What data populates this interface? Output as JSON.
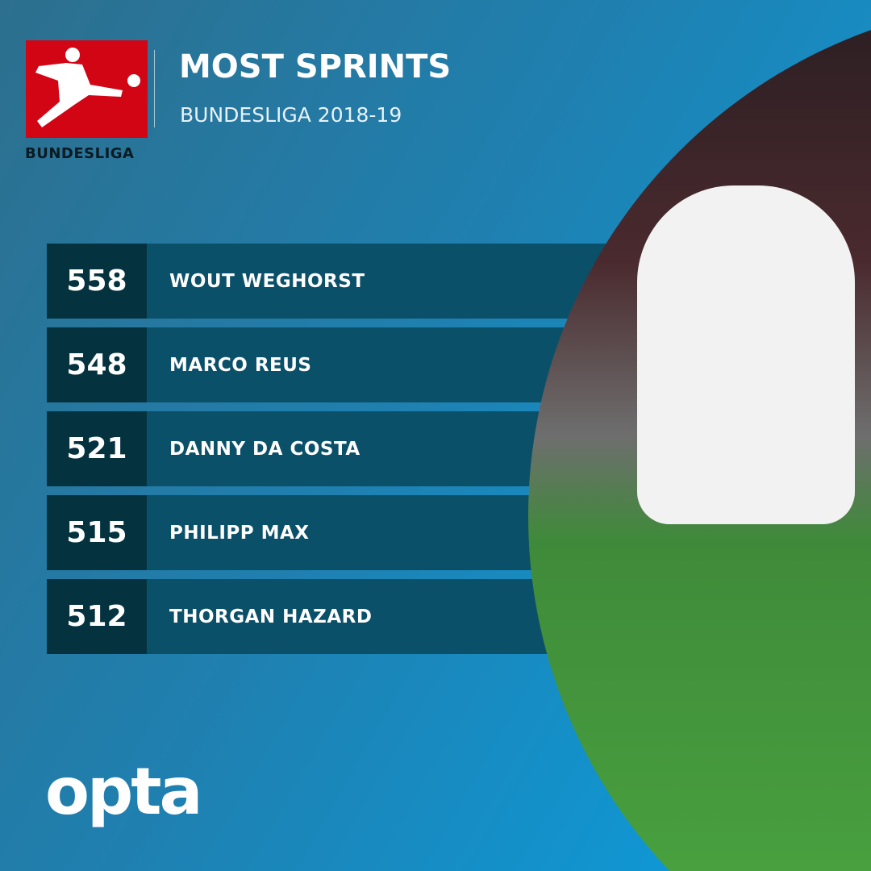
{
  "header": {
    "title": "MOST SPRINTS",
    "subtitle": "BUNDESLIGA 2018-19",
    "logo_text": "BUNDESLIGA"
  },
  "colors": {
    "logo_red": "#d20515",
    "number_box": "#04323f",
    "name_row": "#0b5069",
    "background": "#1f80b0"
  },
  "rankings": [
    {
      "value": "558",
      "name": "WOUT WEGHORST"
    },
    {
      "value": "548",
      "name": "MARCO REUS"
    },
    {
      "value": "521",
      "name": "DANNY DA COSTA"
    },
    {
      "value": "515",
      "name": "PHILIPP MAX"
    },
    {
      "value": "512",
      "name": "THORGAN HAZARD"
    }
  ],
  "footer": {
    "brand": "opta"
  }
}
